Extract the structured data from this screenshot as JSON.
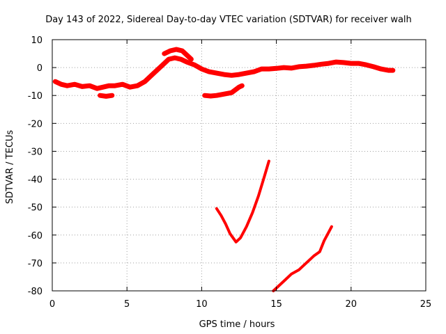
{
  "chart_data": {
    "type": "scatter",
    "title": "Day 143 of 2022, Sidereal Day-to-day VTEC variation (SDTVAR) for receiver walh",
    "xlabel": "GPS time / hours",
    "ylabel": "SDTVAR / TECUs",
    "xlim": [
      0,
      25
    ],
    "ylim": [
      -80,
      10
    ],
    "xticks": [
      0,
      5,
      10,
      15,
      20,
      25
    ],
    "yticks": [
      10,
      0,
      -10,
      -20,
      -30,
      -40,
      -50,
      -60,
      -70,
      -80
    ],
    "grid": true,
    "series": [
      {
        "name": "main-track",
        "color": "#ff0000",
        "points": [
          [
            0.2,
            -5
          ],
          [
            0.6,
            -6
          ],
          [
            1.0,
            -6.5
          ],
          [
            1.5,
            -6
          ],
          [
            2.0,
            -6.8
          ],
          [
            2.5,
            -6.5
          ],
          [
            3.0,
            -7.5
          ],
          [
            3.4,
            -7
          ],
          [
            3.8,
            -6.5
          ],
          [
            4.2,
            -6.5
          ],
          [
            4.7,
            -6
          ],
          [
            5.2,
            -7
          ],
          [
            5.7,
            -6.5
          ],
          [
            6.2,
            -5
          ],
          [
            6.6,
            -3
          ],
          [
            7.0,
            -1
          ],
          [
            7.4,
            1
          ],
          [
            7.8,
            3
          ],
          [
            8.2,
            3.5
          ],
          [
            8.6,
            3
          ],
          [
            9.0,
            2
          ],
          [
            9.5,
            1
          ],
          [
            10.0,
            -0.5
          ],
          [
            10.5,
            -1.5
          ],
          [
            11.0,
            -2
          ],
          [
            11.5,
            -2.5
          ],
          [
            12.0,
            -2.8
          ],
          [
            12.5,
            -2.5
          ],
          [
            13.0,
            -2
          ],
          [
            13.5,
            -1.5
          ],
          [
            14.0,
            -0.5
          ],
          [
            14.5,
            -0.5
          ],
          [
            15.0,
            -0.3
          ],
          [
            15.5,
            0
          ],
          [
            16.0,
            -0.2
          ],
          [
            16.5,
            0.3
          ],
          [
            17.0,
            0.5
          ],
          [
            17.5,
            0.8
          ],
          [
            18.0,
            1.2
          ],
          [
            18.5,
            1.5
          ],
          [
            19.0,
            2
          ],
          [
            19.5,
            1.8
          ],
          [
            20.0,
            1.5
          ],
          [
            20.5,
            1.5
          ],
          [
            21.0,
            1
          ],
          [
            21.5,
            0.3
          ],
          [
            22.0,
            -0.5
          ],
          [
            22.5,
            -1
          ],
          [
            22.8,
            -1
          ]
        ]
      },
      {
        "name": "upper-arc",
        "color": "#ff0000",
        "points": [
          [
            7.5,
            5
          ],
          [
            7.9,
            6
          ],
          [
            8.3,
            6.5
          ],
          [
            8.7,
            6
          ],
          [
            9.0,
            4.5
          ],
          [
            9.3,
            3
          ]
        ]
      },
      {
        "name": "gap-segment",
        "color": "#ff0000",
        "points": [
          [
            3.2,
            -10
          ],
          [
            3.6,
            -10.3
          ],
          [
            4.0,
            -10
          ]
        ]
      },
      {
        "name": "short-segment",
        "color": "#ff0000",
        "points": [
          [
            10.2,
            -10
          ],
          [
            10.6,
            -10.2
          ],
          [
            11.0,
            -10
          ],
          [
            11.5,
            -9.5
          ],
          [
            12.0,
            -9
          ],
          [
            12.5,
            -7
          ],
          [
            12.7,
            -6.5
          ]
        ]
      },
      {
        "name": "v-track",
        "color": "#ff0000",
        "points": [
          [
            11.0,
            -50.5
          ],
          [
            11.3,
            -53
          ],
          [
            11.6,
            -56
          ],
          [
            11.9,
            -59.5
          ],
          [
            12.3,
            -62.5
          ],
          [
            12.6,
            -61
          ],
          [
            13.0,
            -57
          ],
          [
            13.4,
            -52
          ],
          [
            13.8,
            -46
          ],
          [
            14.2,
            -39
          ],
          [
            14.5,
            -33.5
          ]
        ]
      },
      {
        "name": "lower-track",
        "color": "#ff0000",
        "points": [
          [
            14.8,
            -80
          ],
          [
            15.2,
            -78
          ],
          [
            15.6,
            -76
          ],
          [
            16.0,
            -74
          ],
          [
            16.5,
            -72.5
          ],
          [
            17.0,
            -70
          ],
          [
            17.5,
            -67.5
          ],
          [
            17.9,
            -66
          ],
          [
            18.2,
            -62
          ],
          [
            18.5,
            -59
          ],
          [
            18.7,
            -57
          ]
        ]
      }
    ]
  }
}
